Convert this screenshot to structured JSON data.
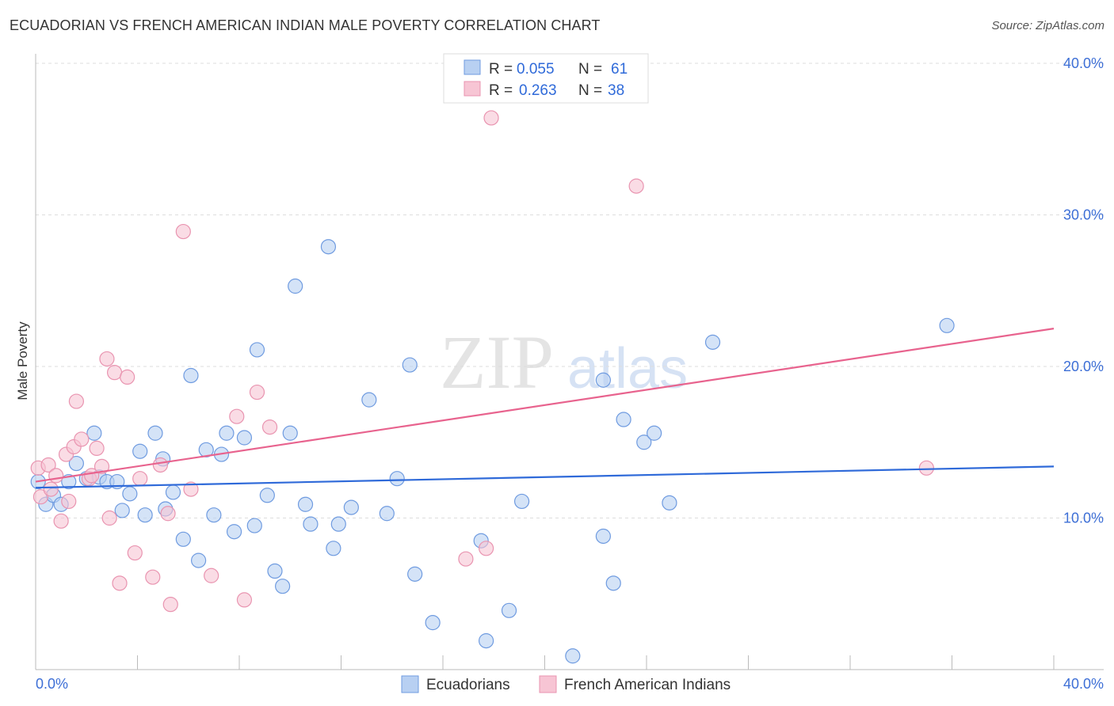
{
  "title": "ECUADORIAN VS FRENCH AMERICAN INDIAN MALE POVERTY CORRELATION CHART",
  "source": "Source: ZipAtlas.com",
  "watermark": "ZIPatlas",
  "colors": {
    "blue": "#2f6ad9",
    "blue_fill": "#b8d0f2",
    "pink": "#e8638e",
    "pink_fill": "#f7c5d4",
    "tick": "#3d6fd6"
  },
  "legend_top": [
    {
      "r_label": "R =",
      "r_value": "0.055",
      "n_label": "N =",
      "n_value": "61"
    },
    {
      "r_label": "R =",
      "r_value": "0.263",
      "n_label": "N =",
      "n_value": "38"
    }
  ],
  "chart_data": {
    "type": "scatter",
    "title": "ECUADORIAN VS FRENCH AMERICAN INDIAN MALE POVERTY CORRELATION CHART",
    "xlabel": "",
    "ylabel": "Male Poverty",
    "xlim": [
      0,
      40
    ],
    "ylim": [
      0,
      40
    ],
    "x_tick_labels": [
      "0.0%",
      "40.0%"
    ],
    "y_ticks": [
      10,
      20,
      30,
      40
    ],
    "y_tick_labels": [
      "10.0%",
      "20.0%",
      "30.0%",
      "40.0%"
    ],
    "grid": true,
    "legend_placement": "bottom",
    "series": [
      {
        "name": "Ecuadorians",
        "r": 0.055,
        "n": 61,
        "trend": [
          [
            0,
            12.0
          ],
          [
            40,
            13.4
          ]
        ],
        "points": [
          [
            0.1,
            12.4
          ],
          [
            0.4,
            10.9
          ],
          [
            0.7,
            11.5
          ],
          [
            1.0,
            10.9
          ],
          [
            1.3,
            12.4
          ],
          [
            1.6,
            13.6
          ],
          [
            2.0,
            12.6
          ],
          [
            2.3,
            15.6
          ],
          [
            2.5,
            12.7
          ],
          [
            2.8,
            12.4
          ],
          [
            3.2,
            12.4
          ],
          [
            3.4,
            10.5
          ],
          [
            3.7,
            11.6
          ],
          [
            4.1,
            14.4
          ],
          [
            4.3,
            10.2
          ],
          [
            4.7,
            15.6
          ],
          [
            5.0,
            13.9
          ],
          [
            5.1,
            10.6
          ],
          [
            5.4,
            11.7
          ],
          [
            5.8,
            8.6
          ],
          [
            6.1,
            19.4
          ],
          [
            6.4,
            7.2
          ],
          [
            6.7,
            14.5
          ],
          [
            7.0,
            10.2
          ],
          [
            7.3,
            14.2
          ],
          [
            7.5,
            15.6
          ],
          [
            7.8,
            9.1
          ],
          [
            8.2,
            15.3
          ],
          [
            8.6,
            9.5
          ],
          [
            8.7,
            21.1
          ],
          [
            9.1,
            11.5
          ],
          [
            9.4,
            6.5
          ],
          [
            9.7,
            5.5
          ],
          [
            10.0,
            15.6
          ],
          [
            10.2,
            25.3
          ],
          [
            10.6,
            10.9
          ],
          [
            10.8,
            9.6
          ],
          [
            11.5,
            27.9
          ],
          [
            11.7,
            8.0
          ],
          [
            11.9,
            9.6
          ],
          [
            12.4,
            10.7
          ],
          [
            13.1,
            17.8
          ],
          [
            13.8,
            10.3
          ],
          [
            14.2,
            12.6
          ],
          [
            14.7,
            20.1
          ],
          [
            14.9,
            6.3
          ],
          [
            15.6,
            3.1
          ],
          [
            17.5,
            8.5
          ],
          [
            17.7,
            1.9
          ],
          [
            18.6,
            3.9
          ],
          [
            19.1,
            11.1
          ],
          [
            21.1,
            0.9
          ],
          [
            22.3,
            19.1
          ],
          [
            22.3,
            8.8
          ],
          [
            22.7,
            5.7
          ],
          [
            23.1,
            16.5
          ],
          [
            23.9,
            15.0
          ],
          [
            24.3,
            15.6
          ],
          [
            24.9,
            11.0
          ],
          [
            26.6,
            21.6
          ],
          [
            35.8,
            22.7
          ]
        ]
      },
      {
        "name": "French American Indians",
        "r": 0.263,
        "n": 38,
        "trend": [
          [
            0,
            12.4
          ],
          [
            40,
            22.5
          ]
        ],
        "points": [
          [
            0.1,
            13.3
          ],
          [
            0.2,
            11.4
          ],
          [
            0.5,
            13.5
          ],
          [
            0.6,
            11.9
          ],
          [
            0.8,
            12.8
          ],
          [
            1.0,
            9.8
          ],
          [
            1.2,
            14.2
          ],
          [
            1.3,
            11.1
          ],
          [
            1.5,
            14.7
          ],
          [
            1.6,
            17.7
          ],
          [
            1.8,
            15.2
          ],
          [
            2.1,
            12.6
          ],
          [
            2.2,
            12.8
          ],
          [
            2.4,
            14.6
          ],
          [
            2.6,
            13.4
          ],
          [
            2.8,
            20.5
          ],
          [
            2.9,
            10.0
          ],
          [
            3.1,
            19.6
          ],
          [
            3.3,
            5.7
          ],
          [
            3.6,
            19.3
          ],
          [
            3.9,
            7.7
          ],
          [
            4.1,
            12.6
          ],
          [
            4.6,
            6.1
          ],
          [
            4.9,
            13.5
          ],
          [
            5.2,
            10.3
          ],
          [
            5.3,
            4.3
          ],
          [
            5.8,
            28.9
          ],
          [
            6.1,
            11.9
          ],
          [
            6.9,
            6.2
          ],
          [
            7.9,
            16.7
          ],
          [
            8.2,
            4.6
          ],
          [
            8.7,
            18.3
          ],
          [
            9.2,
            16.0
          ],
          [
            16.9,
            7.3
          ],
          [
            17.7,
            8.0
          ],
          [
            17.9,
            36.4
          ],
          [
            23.6,
            31.9
          ],
          [
            35.0,
            13.3
          ]
        ]
      }
    ]
  }
}
